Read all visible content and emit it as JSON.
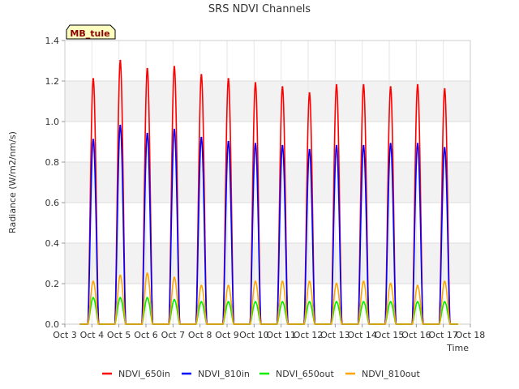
{
  "chart_data": {
    "type": "line",
    "title": "SRS NDVI Channels",
    "xlabel": "Time",
    "ylabel": "Radiance (W/m2/nm/s)",
    "site_label": "MB_tule",
    "ylim": [
      0,
      1.4
    ],
    "yticks": [
      "0.0",
      "0.2",
      "0.4",
      "0.6",
      "0.8",
      "1.0",
      "1.2",
      "1.4"
    ],
    "xlim": [
      "Oct 3",
      "Oct 18"
    ],
    "xticks": [
      "Oct 3",
      "Oct 4",
      "Oct 5",
      "Oct 6",
      "Oct 7",
      "Oct 8",
      "Oct 9",
      "Oct 10",
      "Oct 11",
      "Oct 12",
      "Oct 13",
      "Oct 14",
      "Oct 15",
      "Oct 16",
      "Oct 17",
      "Oct 18"
    ],
    "grid": true,
    "legend_position": "bottom",
    "x": [
      "Oct 4",
      "Oct 5",
      "Oct 6",
      "Oct 7",
      "Oct 8",
      "Oct 9",
      "Oct 10",
      "Oct 11",
      "Oct 12",
      "Oct 13",
      "Oct 14",
      "Oct 15",
      "Oct 16",
      "Oct 17"
    ],
    "series": [
      {
        "name": "NDVI_650in",
        "color": "#ff0000",
        "values": [
          1.21,
          1.3,
          1.26,
          1.27,
          1.23,
          1.21,
          1.19,
          1.17,
          1.14,
          1.18,
          1.18,
          1.17,
          1.18,
          1.16
        ]
      },
      {
        "name": "NDVI_810in",
        "color": "#0000ff",
        "values": [
          0.91,
          0.98,
          0.94,
          0.96,
          0.92,
          0.9,
          0.89,
          0.88,
          0.86,
          0.88,
          0.88,
          0.89,
          0.89,
          0.87
        ]
      },
      {
        "name": "NDVI_650out",
        "color": "#00ee00",
        "values": [
          0.13,
          0.13,
          0.13,
          0.12,
          0.11,
          0.11,
          0.11,
          0.11,
          0.11,
          0.11,
          0.11,
          0.11,
          0.11,
          0.11
        ]
      },
      {
        "name": "NDVI_810out",
        "color": "#ffa500",
        "values": [
          0.21,
          0.24,
          0.25,
          0.23,
          0.19,
          0.19,
          0.21,
          0.21,
          0.21,
          0.2,
          0.21,
          0.2,
          0.19,
          0.21
        ]
      }
    ]
  }
}
